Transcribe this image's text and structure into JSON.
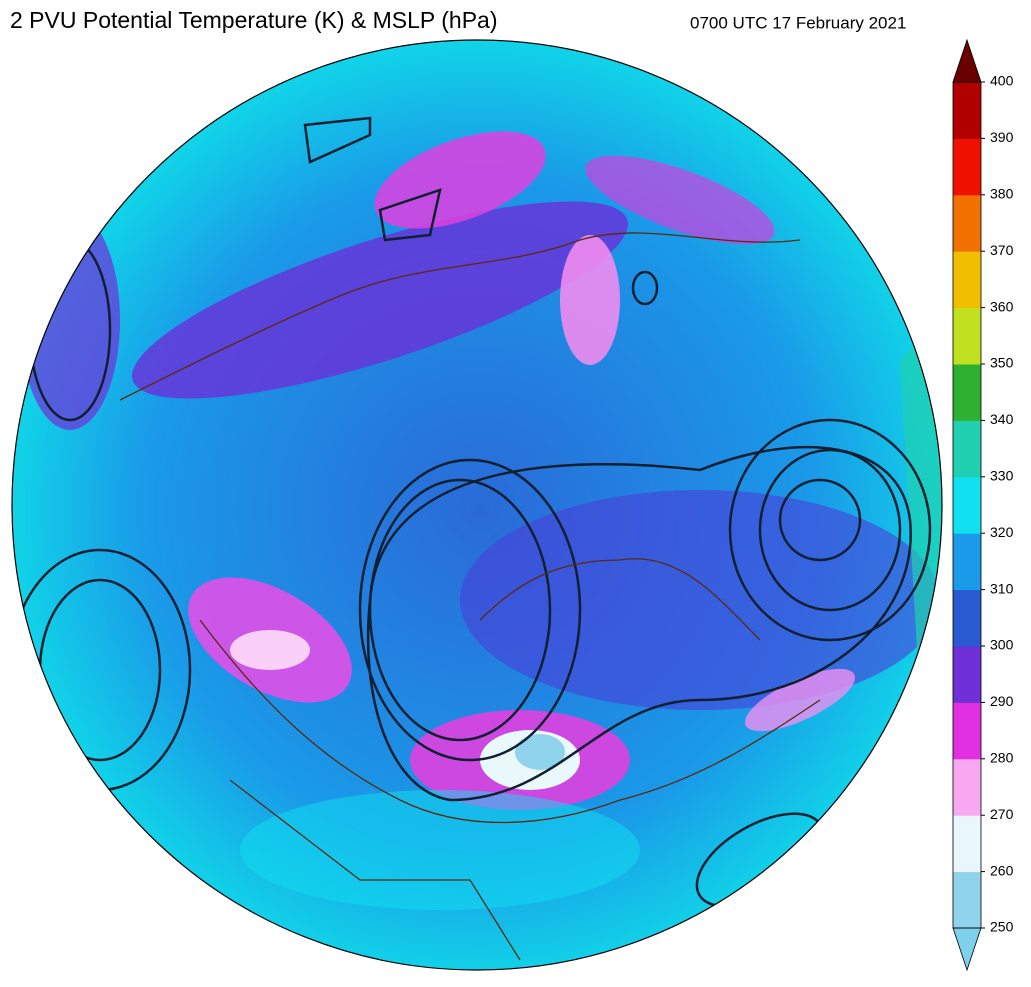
{
  "title": "2 PVU Potential Temperature (K) & MSLP (hPa)",
  "timestamp": "0700 UTC 17 February 2021",
  "colorbar": {
    "range": [
      250,
      400
    ],
    "ticks": [
      250,
      260,
      270,
      280,
      290,
      300,
      310,
      320,
      330,
      340,
      350,
      360,
      370,
      380,
      390,
      400
    ],
    "colors": [
      "#8fd3ec",
      "#e8f7fb",
      "#f7a8f0",
      "#e030e0",
      "#7030d8",
      "#2a5ad0",
      "#1a9ae8",
      "#10e0f0",
      "#20d0b0",
      "#30b030",
      "#c0e020",
      "#f0c000",
      "#f07000",
      "#f01000",
      "#b00000"
    ],
    "under_color": "#7fd0ea",
    "over_color": "#6a0000"
  }
}
